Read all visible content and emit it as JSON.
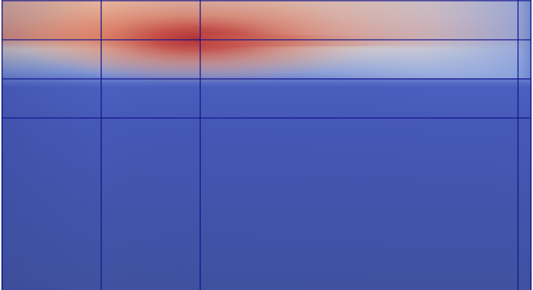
{
  "scene": {
    "view": "simulation-render",
    "colormap": "cool-to-warm",
    "colors": {
      "background": "#ffffff",
      "field_low": "#3b4cc0",
      "field_mid": "#dddddd",
      "field_high": "#b40426",
      "mesh_line": "#11118a"
    }
  }
}
